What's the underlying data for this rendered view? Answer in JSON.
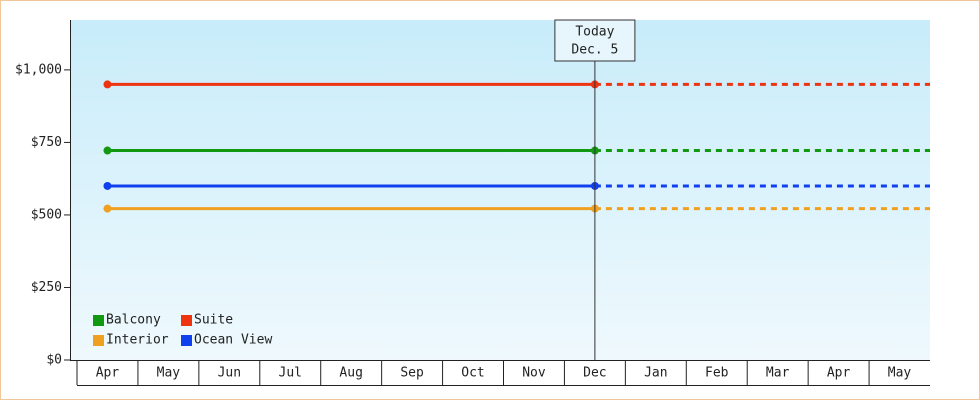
{
  "chart_data": {
    "type": "line",
    "categories": [
      "Apr",
      "May",
      "Jun",
      "Jul",
      "Aug",
      "Sep",
      "Oct",
      "Nov",
      "Dec",
      "Jan",
      "Feb",
      "Mar",
      "Apr",
      "May"
    ],
    "series": [
      {
        "name": "Balcony",
        "color": "#119911",
        "values": [
          722,
          722,
          722,
          722,
          722,
          722,
          722,
          722,
          722,
          null,
          null,
          null,
          null,
          null
        ]
      },
      {
        "name": "Suite",
        "color": "#ee3311",
        "values": [
          950,
          950,
          950,
          950,
          950,
          950,
          950,
          950,
          950,
          null,
          null,
          null,
          null,
          null
        ]
      },
      {
        "name": "Interior",
        "color": "#f0a020",
        "values": [
          522,
          522,
          522,
          522,
          522,
          522,
          522,
          522,
          522,
          null,
          null,
          null,
          null,
          null
        ]
      },
      {
        "name": "Ocean View",
        "color": "#1040ee",
        "values": [
          600,
          600,
          600,
          600,
          600,
          600,
          600,
          600,
          600,
          null,
          null,
          null,
          null,
          null
        ]
      }
    ],
    "ylim": [
      0,
      1172
    ],
    "yticks": [
      {
        "value": 0,
        "label": "$0"
      },
      {
        "value": 250,
        "label": "$250"
      },
      {
        "value": 500,
        "label": "$500"
      },
      {
        "value": 750,
        "label": "$750"
      },
      {
        "value": 1000,
        "label": "$1,000"
      }
    ],
    "annotation": {
      "title": "Today",
      "date": "Dec. 5"
    },
    "legend": "bottom-left",
    "grid": false
  }
}
